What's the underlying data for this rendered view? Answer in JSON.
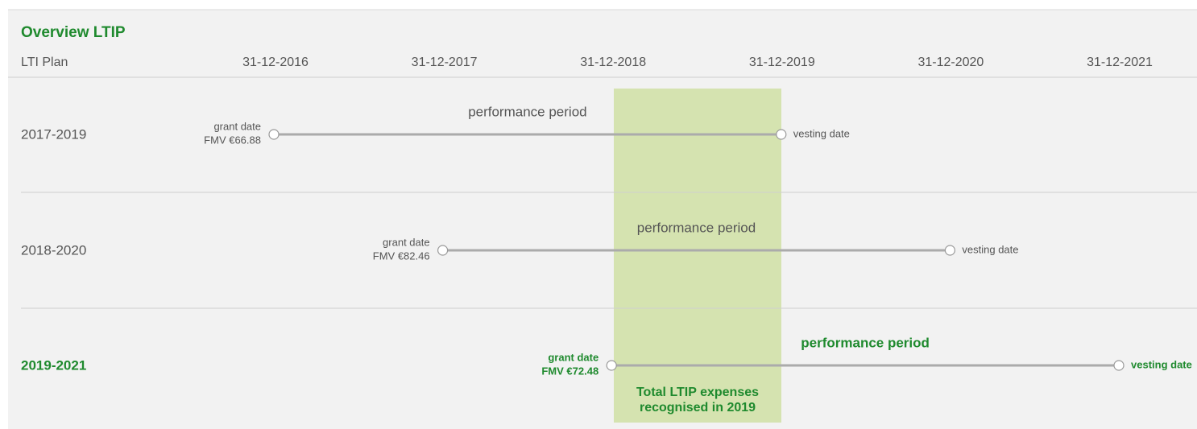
{
  "header": {
    "title": "Overview LTIP",
    "column_label": "LTI Plan",
    "dates": [
      "31-12-2016",
      "31-12-2017",
      "31-12-2018",
      "31-12-2019",
      "31-12-2020",
      "31-12-2021"
    ]
  },
  "rows": [
    {
      "plan": "2017-2019",
      "grant": [
        "grant date",
        "FMV €66.88"
      ],
      "period": "performance period",
      "vesting": "vesting date"
    },
    {
      "plan": "2018-2020",
      "grant": [
        "grant date",
        "FMV €82.46"
      ],
      "period": "performance period",
      "vesting": "vesting date"
    },
    {
      "plan": "2019-2021",
      "grant": [
        "grant date",
        "FMV €72.48"
      ],
      "period": "performance period",
      "vesting": "vesting date"
    }
  ],
  "highlight": [
    "Total LTIP expenses",
    "recognised in 2019"
  ]
}
